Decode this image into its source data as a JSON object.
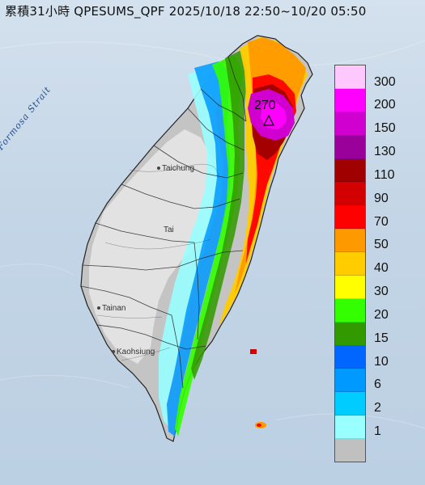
{
  "title": {
    "prefix": "累積31小時 QPESUMS_QPF",
    "range": "2025/10/18 22:50~10/20 05:50"
  },
  "map": {
    "strait_label": "Formosa Strait",
    "cities": [
      {
        "name": "Taichung"
      },
      {
        "name": "Tai"
      },
      {
        "name": "Tainan"
      },
      {
        "name": "Kaohsiung"
      }
    ],
    "peak": {
      "value": "270",
      "marker": "triangle"
    }
  },
  "legend": {
    "labels": [
      "300",
      "200",
      "150",
      "130",
      "110",
      "90",
      "70",
      "50",
      "40",
      "30",
      "20",
      "15",
      "10",
      "6",
      "2",
      "1"
    ],
    "colors": [
      "#ffc8ff",
      "#ff00ff",
      "#d000d0",
      "#9a009a",
      "#a00000",
      "#d20000",
      "#ff0000",
      "#ff9900",
      "#ffcc00",
      "#ffff00",
      "#33ff00",
      "#339900",
      "#0066ff",
      "#0099ff",
      "#00ccff",
      "#99ffff",
      "#c0c0c0"
    ]
  }
}
